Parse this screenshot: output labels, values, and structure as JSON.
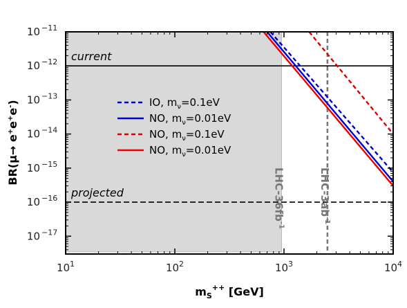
{
  "chart_data": {
    "type": "line",
    "title": "",
    "xlabel": {
      "main": "m",
      "sub": "S",
      "sup": "++",
      "unit": " [GeV]"
    },
    "ylabel": {
      "pre": "BR(μ→ e",
      "sup1": "+",
      "mid1": "e",
      "sup2": "+",
      "mid2": "e",
      "sup3": "-",
      "post": ")"
    },
    "xscale": "log",
    "yscale": "log",
    "xlim": [
      10,
      10000
    ],
    "ylim": [
      3e-18,
      1e-11
    ],
    "xticks": [
      {
        "value": 10,
        "base": "10",
        "exp": "1"
      },
      {
        "value": 100,
        "base": "10",
        "exp": "2"
      },
      {
        "value": 1000,
        "base": "10",
        "exp": "3"
      },
      {
        "value": 10000,
        "base": "10",
        "exp": "4"
      }
    ],
    "yticks": [
      {
        "value": 1e-11,
        "base": "10",
        "exp": "−11"
      },
      {
        "value": 1e-12,
        "base": "10",
        "exp": "−12"
      },
      {
        "value": 1e-13,
        "base": "10",
        "exp": "−13"
      },
      {
        "value": 1e-14,
        "base": "10",
        "exp": "−14"
      },
      {
        "value": 1e-15,
        "base": "10",
        "exp": "−15"
      },
      {
        "value": 1e-16,
        "base": "10",
        "exp": "−16"
      },
      {
        "value": 1e-17,
        "base": "10",
        "exp": "−17"
      }
    ],
    "series": [
      {
        "name": "IO, m",
        "name_sub": "ν",
        "name_tail": "=0.1eV",
        "color": "#0000cc",
        "dash": "dashed",
        "x": [
          750,
          10000
        ],
        "y": [
          1e-11,
          7.5e-16
        ]
      },
      {
        "name": "NO, m",
        "name_sub": "ν",
        "name_tail": "=0.01eV",
        "color": "#0000cc",
        "dash": "solid",
        "x": [
          700,
          10000
        ],
        "y": [
          1e-11,
          4e-16
        ]
      },
      {
        "name": "NO, m",
        "name_sub": "ν",
        "name_tail": "=0.1eV",
        "color": "#dd0000",
        "dash": "dashed",
        "x": [
          1700,
          10000
        ],
        "y": [
          1e-11,
          1e-14
        ]
      },
      {
        "name": "NO, m",
        "name_sub": "ν",
        "name_tail": "=0.01eV",
        "color": "#ee0000",
        "dash": "solid",
        "x": [
          650,
          10000
        ],
        "y": [
          1e-11,
          3e-16
        ]
      }
    ],
    "hlines": [
      {
        "label": "current",
        "y": 1e-12,
        "style": "solid"
      },
      {
        "label": "projected",
        "y": 1e-16,
        "style": "dashed"
      }
    ],
    "excluded_region": {
      "x": [
        10,
        950
      ],
      "color": "#d9d9d9"
    },
    "vlines": [
      {
        "label": "LHC-36fb",
        "sup": "-1",
        "x": 950,
        "style": "none"
      },
      {
        "label": "LHC-3ab",
        "sup": "-1",
        "x": 2500,
        "style": "dashed"
      }
    ],
    "grid": false,
    "legend_position": "center-left"
  }
}
